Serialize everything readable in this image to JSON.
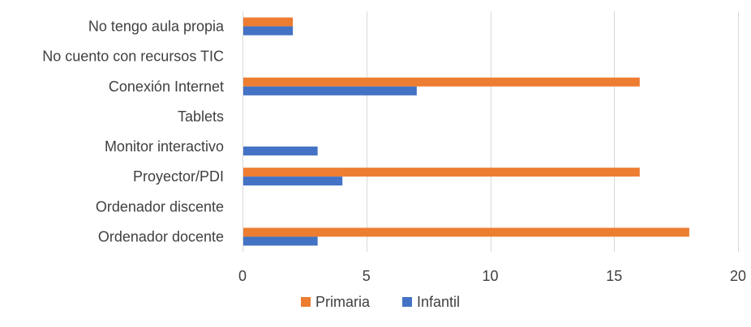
{
  "chart_data": {
    "type": "bar",
    "orientation": "horizontal",
    "categories": [
      "No tengo aula propia",
      "No cuento con recursos TIC",
      "Conexión Internet",
      "Tablets",
      "Monitor interactivo",
      "Proyector/PDI",
      "Ordenador discente",
      "Ordenador docente"
    ],
    "series": [
      {
        "name": "Primaria",
        "color": "#ed7d31",
        "values": [
          2,
          0,
          16,
          0,
          0,
          16,
          0,
          18
        ]
      },
      {
        "name": "Infantil",
        "color": "#4472c4",
        "values": [
          2,
          0,
          7,
          0,
          3,
          4,
          0,
          3
        ]
      }
    ],
    "xlim": [
      0,
      20
    ],
    "xticks": [
      0,
      5,
      10,
      15,
      20
    ],
    "grid": true,
    "legend_position": "bottom"
  }
}
